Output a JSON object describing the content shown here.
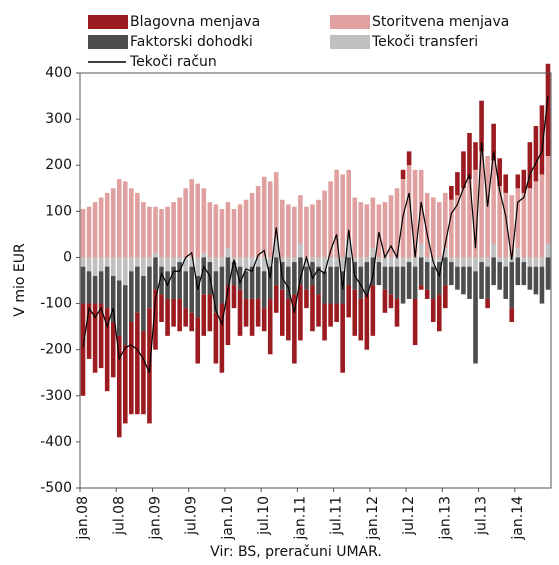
{
  "chart_data": {
    "type": "bar",
    "y_label": "V mio EUR",
    "source": "Vir: BS, preračuni UMAR.",
    "categories": [
      "jan.08",
      null,
      null,
      null,
      null,
      null,
      "jul.08",
      null,
      null,
      null,
      null,
      null,
      "jan.09",
      null,
      null,
      null,
      null,
      null,
      "jul.09",
      null,
      null,
      null,
      null,
      null,
      "jan.10",
      null,
      null,
      null,
      null,
      null,
      "jul.10",
      null,
      null,
      null,
      null,
      null,
      "jan.11",
      null,
      null,
      null,
      null,
      null,
      "jul.11",
      null,
      null,
      null,
      null,
      null,
      "jan.12",
      null,
      null,
      null,
      null,
      null,
      "jul.12",
      null,
      null,
      null,
      null,
      null,
      "jan.13",
      null,
      null,
      null,
      null,
      null,
      "jul.13",
      null,
      null,
      null,
      null,
      null,
      "jan.14",
      null,
      null,
      null,
      null,
      null
    ],
    "series": [
      {
        "name": "Blagovna menjava",
        "color": "#9b1b20",
        "values": [
          -200,
          -120,
          -150,
          -140,
          -180,
          -120,
          -220,
          -170,
          -200,
          -220,
          -180,
          -250,
          -130,
          -60,
          -80,
          -60,
          -70,
          -40,
          -40,
          -100,
          -90,
          -80,
          -110,
          -150,
          -130,
          -50,
          -100,
          -60,
          -80,
          -60,
          -50,
          -120,
          -60,
          -100,
          -90,
          -150,
          -120,
          -40,
          -100,
          -70,
          -80,
          -50,
          -40,
          -150,
          -70,
          -100,
          -90,
          -120,
          -110,
          0,
          -50,
          -30,
          -60,
          20,
          30,
          -100,
          -10,
          -20,
          -50,
          -80,
          -50,
          30,
          50,
          80,
          100,
          60,
          110,
          -20,
          80,
          60,
          40,
          -30,
          30,
          50,
          100,
          120,
          150,
          200
        ]
      },
      {
        "name": "Storitvena menjava",
        "color": "#e0a0a0",
        "values": [
          105,
          110,
          120,
          130,
          140,
          150,
          170,
          165,
          150,
          140,
          120,
          110,
          100,
          105,
          110,
          120,
          130,
          150,
          170,
          160,
          140,
          120,
          115,
          105,
          100,
          105,
          115,
          125,
          140,
          155,
          175,
          165,
          145,
          125,
          115,
          110,
          105,
          110,
          115,
          125,
          145,
          165,
          190,
          180,
          150,
          130,
          120,
          115,
          110,
          115,
          120,
          135,
          150,
          170,
          200,
          190,
          160,
          140,
          130,
          120,
          120,
          125,
          135,
          150,
          170,
          190,
          230,
          220,
          180,
          155,
          140,
          135,
          130,
          140,
          150,
          165,
          180,
          190
        ]
      },
      {
        "name": "Faktorski dohodki",
        "color": "#4d4d4d",
        "values": [
          -80,
          -70,
          -60,
          -70,
          -90,
          -100,
          -120,
          -130,
          -110,
          -100,
          -120,
          -90,
          -70,
          -60,
          -60,
          -70,
          -80,
          -80,
          -100,
          -90,
          -80,
          -70,
          -90,
          -80,
          -60,
          -50,
          -50,
          -60,
          -70,
          -70,
          -80,
          -70,
          -60,
          -60,
          -70,
          -70,
          -60,
          -50,
          -50,
          -60,
          -70,
          -80,
          -80,
          -70,
          -60,
          -60,
          -70,
          -70,
          -60,
          -50,
          -50,
          -60,
          -70,
          -80,
          -80,
          -70,
          -60,
          -60,
          -70,
          -70,
          -60,
          -50,
          -50,
          -60,
          -70,
          -200,
          -80,
          -70,
          -60,
          -60,
          -70,
          -100,
          -60,
          -50,
          -50,
          -60,
          -80,
          -70
        ]
      },
      {
        "name": "Tekoči transferi",
        "color": "#c0c0c0",
        "values": [
          -20,
          -30,
          -40,
          -30,
          -20,
          -40,
          -50,
          -60,
          -30,
          -20,
          -40,
          -20,
          10,
          -20,
          -30,
          -20,
          -10,
          -30,
          -20,
          -40,
          10,
          -10,
          -30,
          -20,
          20,
          -10,
          -20,
          -30,
          -20,
          -20,
          -30,
          -20,
          40,
          -10,
          -20,
          -10,
          30,
          -20,
          -10,
          -20,
          -30,
          -20,
          -20,
          -30,
          40,
          -10,
          -20,
          -10,
          20,
          -10,
          -20,
          -20,
          -20,
          -20,
          -10,
          -20,
          30,
          -10,
          -20,
          -10,
          20,
          -10,
          -20,
          -20,
          -20,
          -30,
          -10,
          -20,
          30,
          -10,
          -20,
          -10,
          20,
          -10,
          -20,
          -20,
          -20,
          30
        ]
      },
      {
        "name": "Tekoči račun",
        "type": "line",
        "color": "#000000",
        "values": [
          -195,
          -110,
          -130,
          -110,
          -150,
          -110,
          -220,
          -195,
          -190,
          -200,
          -220,
          -250,
          -90,
          -35,
          -60,
          -30,
          -30,
          0,
          10,
          -70,
          -20,
          -40,
          -115,
          -145,
          -70,
          -5,
          -55,
          -25,
          -30,
          5,
          15,
          -45,
          65,
          -45,
          -65,
          -120,
          -45,
          0,
          -45,
          -25,
          -35,
          15,
          50,
          -70,
          60,
          -40,
          -60,
          -85,
          -40,
          55,
          0,
          25,
          0,
          90,
          140,
          0,
          120,
          50,
          -10,
          -40,
          30,
          95,
          115,
          150,
          180,
          20,
          250,
          110,
          230,
          145,
          90,
          -5,
          120,
          130,
          180,
          205,
          230,
          350
        ]
      }
    ],
    "ylim": [
      -500,
      400
    ],
    "yticks": [
      -500,
      -400,
      -300,
      -200,
      -100,
      0,
      100,
      200,
      300,
      400
    ]
  }
}
